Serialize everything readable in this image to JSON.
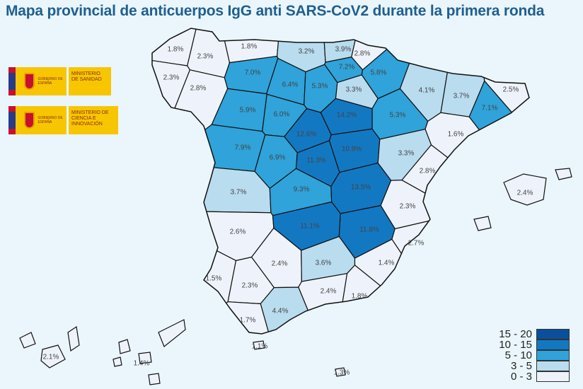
{
  "title": "Mapa provincial de anticuerpos IgG anti SARS-CoV2 durante la primera ronda",
  "logos": [
    {
      "gov": "GOBIERNO DE ESPAÑA",
      "ministry": "MINISTERIO DE SANIDAD"
    },
    {
      "gov": "GOBIERNO DE ESPAÑA",
      "ministry": "MINISTERIO DE CIENCIA E INNOVACIÓN"
    }
  ],
  "legend": [
    {
      "label": "15 - 20",
      "color": "#0b4f9c"
    },
    {
      "label": "10 - 15",
      "color": "#1378c2"
    },
    {
      "label": "5 - 10",
      "color": "#2fa3da"
    },
    {
      "label": "3 - 5",
      "color": "#b9dcef"
    },
    {
      "label": "0 - 3",
      "color": "#eef3fb"
    }
  ],
  "chart_data": {
    "type": "choropleth",
    "title": "Mapa provincial de anticuerpos IgG anti SARS-CoV2 durante la primera ronda",
    "bins": [
      [
        15,
        20
      ],
      [
        10,
        15
      ],
      [
        5,
        10
      ],
      [
        3,
        5
      ],
      [
        0,
        3
      ]
    ],
    "provinces": [
      {
        "label": "1.8%",
        "value": 1.8
      },
      {
        "label": "2.3%",
        "value": 2.3
      },
      {
        "label": "2.3%",
        "value": 2.3
      },
      {
        "label": "2.8%",
        "value": 2.8
      },
      {
        "label": "1.8%",
        "value": 1.8
      },
      {
        "label": "3.2%",
        "value": 3.2
      },
      {
        "label": "3.9%",
        "value": 3.9
      },
      {
        "label": "2.8%",
        "value": 2.8
      },
      {
        "label": "7.2%",
        "value": 7.2
      },
      {
        "label": "5.8%",
        "value": 5.8
      },
      {
        "label": "7.0%",
        "value": 7.0
      },
      {
        "label": "6.4%",
        "value": 6.4
      },
      {
        "label": "5.3%",
        "value": 5.3
      },
      {
        "label": "3.3%",
        "value": 3.3
      },
      {
        "label": "4.1%",
        "value": 4.1
      },
      {
        "label": "3.7%",
        "value": 3.7
      },
      {
        "label": "2.5%",
        "value": 2.5
      },
      {
        "label": "7.1%",
        "value": 7.1
      },
      {
        "label": "5.3%",
        "value": 5.3
      },
      {
        "label": "5.9%",
        "value": 5.9
      },
      {
        "label": "6.0%",
        "value": 6.0
      },
      {
        "label": "14.2%",
        "value": 14.2
      },
      {
        "label": "1.6%",
        "value": 1.6
      },
      {
        "label": "7.9%",
        "value": 7.9
      },
      {
        "label": "12.6%",
        "value": 12.6
      },
      {
        "label": "6.9%",
        "value": 6.9
      },
      {
        "label": "11.3%",
        "value": 11.3
      },
      {
        "label": "10.9%",
        "value": 10.9
      },
      {
        "label": "3.3%",
        "value": 3.3
      },
      {
        "label": "2.8%",
        "value": 2.8
      },
      {
        "label": "3.7%",
        "value": 3.7
      },
      {
        "label": "9.3%",
        "value": 9.3
      },
      {
        "label": "13.5%",
        "value": 13.5
      },
      {
        "label": "2.3%",
        "value": 2.3
      },
      {
        "label": "2.6%",
        "value": 2.6
      },
      {
        "label": "11.1%",
        "value": 11.1
      },
      {
        "label": "11.8%",
        "value": 11.8
      },
      {
        "label": "2.7%",
        "value": 2.7
      },
      {
        "label": "1.5%",
        "value": 1.5
      },
      {
        "label": "2.3%",
        "value": 2.3
      },
      {
        "label": "2.4%",
        "value": 2.4
      },
      {
        "label": "3.6%",
        "value": 3.6
      },
      {
        "label": "1.4%",
        "value": 1.4
      },
      {
        "label": "2.4%",
        "value": 2.4
      },
      {
        "label": "1.8%",
        "value": 1.8
      },
      {
        "label": "4.4%",
        "value": 4.4
      },
      {
        "label": "1.7%",
        "value": 1.7
      }
    ],
    "islands": [
      {
        "label": "2.4%",
        "value": 2.4
      },
      {
        "label": "1.1%",
        "value": 1.1
      },
      {
        "label": "1.3%",
        "value": 1.3
      },
      {
        "label": "2.1%",
        "value": 2.1
      },
      {
        "label": "1.4%",
        "value": 1.4
      }
    ]
  }
}
